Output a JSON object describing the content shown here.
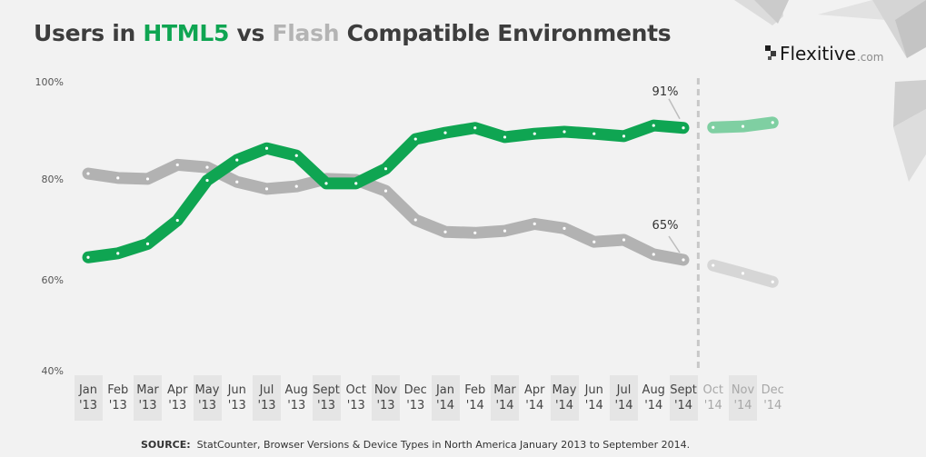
{
  "title": {
    "prefix": "Users in ",
    "html5": "HTML5",
    "vs": " vs ",
    "flash": "Flash",
    "suffix": " Compatible Environments"
  },
  "logo": {
    "brand": "Flexitive",
    "tld": ".com"
  },
  "colors": {
    "html5": "#0fa552",
    "html5_projection": "#7fcfa2",
    "flash": "#b2b2b2",
    "flash_projection": "#d6d6d6",
    "divider": "#c8c8c8"
  },
  "source": {
    "label": "SOURCE:",
    "text": "StatCounter, Browser Versions & Device Types in North America January 2013 to September 2014."
  },
  "chart_data": {
    "type": "line",
    "title": "Users in HTML5 vs Flash Compatible Environments",
    "xlabel": "",
    "ylabel": "",
    "ylim": [
      40,
      100
    ],
    "yticks": [
      "100%",
      "80%",
      "60%",
      "40%"
    ],
    "grid": false,
    "categories": [
      {
        "month": "Jan",
        "year": "'13"
      },
      {
        "month": "Feb",
        "year": "'13"
      },
      {
        "month": "Mar",
        "year": "'13"
      },
      {
        "month": "Apr",
        "year": "'13"
      },
      {
        "month": "May",
        "year": "'13"
      },
      {
        "month": "Jun",
        "year": "'13"
      },
      {
        "month": "Jul",
        "year": "'13"
      },
      {
        "month": "Aug",
        "year": "'13"
      },
      {
        "month": "Sept",
        "year": "'13"
      },
      {
        "month": "Oct",
        "year": "'13"
      },
      {
        "month": "Nov",
        "year": "'13"
      },
      {
        "month": "Dec",
        "year": "'13"
      },
      {
        "month": "Jan",
        "year": "'14"
      },
      {
        "month": "Feb",
        "year": "'14"
      },
      {
        "month": "Mar",
        "year": "'14"
      },
      {
        "month": "Apr",
        "year": "'14"
      },
      {
        "month": "May",
        "year": "'14"
      },
      {
        "month": "Jun",
        "year": "'14"
      },
      {
        "month": "Jul",
        "year": "'14"
      },
      {
        "month": "Aug",
        "year": "'14"
      },
      {
        "month": "Sept",
        "year": "'14"
      },
      {
        "month": "Oct",
        "year": "'14",
        "projected": true
      },
      {
        "month": "Nov",
        "year": "'14",
        "projected": true
      },
      {
        "month": "Dec",
        "year": "'14",
        "projected": true
      }
    ],
    "series": [
      {
        "name": "HTML5",
        "values": [
          64.5,
          65.3,
          67.2,
          71.9,
          79.9,
          84.1,
          86.5,
          85.0,
          79.3,
          79.3,
          82.3,
          88.4,
          89.7,
          90.7,
          88.8,
          89.5,
          89.9,
          89.5,
          89.0,
          91.2,
          90.7
        ],
        "projection": [
          90.8,
          91.0,
          91.8
        ],
        "annotation": "91%"
      },
      {
        "name": "Flash",
        "values": [
          81.3,
          80.4,
          80.2,
          83.1,
          82.6,
          79.6,
          78.2,
          78.7,
          80.2,
          80.0,
          77.8,
          72.0,
          69.6,
          69.4,
          69.8,
          71.2,
          70.3,
          67.6,
          68.0,
          65.1,
          64.0
        ],
        "projection": [
          62.9,
          61.3,
          59.6
        ],
        "annotation": "65%"
      }
    ]
  }
}
